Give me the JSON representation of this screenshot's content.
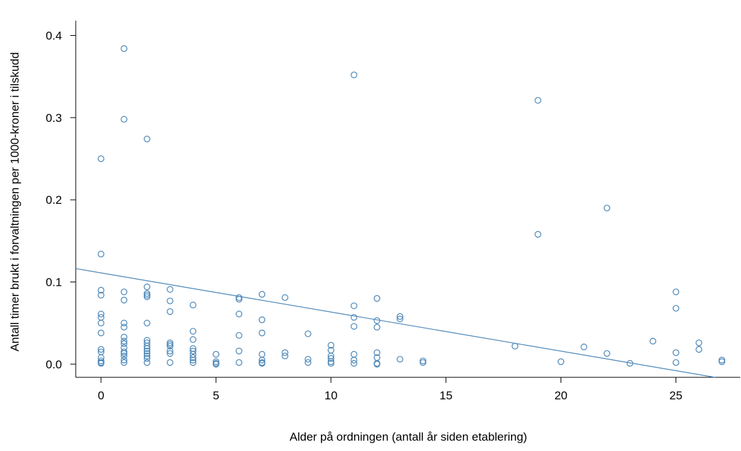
{
  "chart_data": {
    "type": "scatter",
    "title": "",
    "xlabel": "Alder på ordningen (antall år siden etablering)",
    "ylabel": "Antall timer brukt i forvaltningen per 1000-kroner i tilskudd",
    "xlim": [
      -1.1,
      27.8
    ],
    "ylim": [
      -0.016,
      0.418
    ],
    "x_ticks": [
      0,
      5,
      10,
      15,
      20,
      25
    ],
    "x_tick_labels": [
      "0",
      "5",
      "10",
      "15",
      "20",
      "25"
    ],
    "y_ticks": [
      0.0,
      0.1,
      0.2,
      0.3,
      0.4
    ],
    "y_tick_labels": [
      "0.0",
      "0.1",
      "0.2",
      "0.3",
      "0.4"
    ],
    "grid": false,
    "legend": "none",
    "point_color": "#4a86b8",
    "trendline": {
      "color": "#4a86b8",
      "from": [
        -1.1,
        0.1163
      ],
      "to": [
        26.7,
        -0.016
      ]
    },
    "points": [
      [
        0,
        0.25
      ],
      [
        0,
        0.134
      ],
      [
        0,
        0.09
      ],
      [
        0,
        0.084
      ],
      [
        0,
        0.061
      ],
      [
        0,
        0.057
      ],
      [
        0,
        0.05
      ],
      [
        0,
        0.038
      ],
      [
        0,
        0.018
      ],
      [
        0,
        0.015
      ],
      [
        0,
        0.008
      ],
      [
        0,
        0.004
      ],
      [
        0,
        0.002
      ],
      [
        0,
        0.001
      ],
      [
        1,
        0.384
      ],
      [
        1,
        0.298
      ],
      [
        1,
        0.088
      ],
      [
        1,
        0.078
      ],
      [
        1,
        0.05
      ],
      [
        1,
        0.045
      ],
      [
        1,
        0.033
      ],
      [
        1,
        0.028
      ],
      [
        1,
        0.025
      ],
      [
        1,
        0.02
      ],
      [
        1,
        0.015
      ],
      [
        1,
        0.013
      ],
      [
        1,
        0.01
      ],
      [
        1,
        0.005
      ],
      [
        1,
        0.002
      ],
      [
        2,
        0.274
      ],
      [
        2,
        0.094
      ],
      [
        2,
        0.086
      ],
      [
        2,
        0.084
      ],
      [
        2,
        0.082
      ],
      [
        2,
        0.05
      ],
      [
        2,
        0.029
      ],
      [
        2,
        0.026
      ],
      [
        2,
        0.022
      ],
      [
        2,
        0.019
      ],
      [
        2,
        0.016
      ],
      [
        2,
        0.013
      ],
      [
        2,
        0.01
      ],
      [
        2,
        0.007
      ],
      [
        2,
        0.002
      ],
      [
        3,
        0.091
      ],
      [
        3,
        0.077
      ],
      [
        3,
        0.064
      ],
      [
        3,
        0.026
      ],
      [
        3,
        0.024
      ],
      [
        3,
        0.022
      ],
      [
        3,
        0.016
      ],
      [
        3,
        0.013
      ],
      [
        3,
        0.002
      ],
      [
        4,
        0.072
      ],
      [
        4,
        0.04
      ],
      [
        4,
        0.03
      ],
      [
        4,
        0.019
      ],
      [
        4,
        0.016
      ],
      [
        4,
        0.012
      ],
      [
        4,
        0.008
      ],
      [
        4,
        0.005
      ],
      [
        4,
        0.002
      ],
      [
        5,
        0.012
      ],
      [
        5,
        0.003
      ],
      [
        5,
        0.001
      ],
      [
        5,
        0.0
      ],
      [
        6,
        0.081
      ],
      [
        6,
        0.079
      ],
      [
        6,
        0.061
      ],
      [
        6,
        0.035
      ],
      [
        6,
        0.016
      ],
      [
        6,
        0.002
      ],
      [
        7,
        0.085
      ],
      [
        7,
        0.054
      ],
      [
        7,
        0.038
      ],
      [
        7,
        0.012
      ],
      [
        7,
        0.005
      ],
      [
        7,
        0.002
      ],
      [
        7,
        0.001
      ],
      [
        8,
        0.081
      ],
      [
        8,
        0.014
      ],
      [
        8,
        0.01
      ],
      [
        9,
        0.037
      ],
      [
        9,
        0.006
      ],
      [
        9,
        0.002
      ],
      [
        10,
        0.023
      ],
      [
        10,
        0.017
      ],
      [
        10,
        0.01
      ],
      [
        10,
        0.007
      ],
      [
        10,
        0.003
      ],
      [
        10,
        0.001
      ],
      [
        11,
        0.352
      ],
      [
        11,
        0.071
      ],
      [
        11,
        0.057
      ],
      [
        11,
        0.046
      ],
      [
        11,
        0.012
      ],
      [
        11,
        0.005
      ],
      [
        11,
        0.001
      ],
      [
        12,
        0.08
      ],
      [
        12,
        0.053
      ],
      [
        12,
        0.045
      ],
      [
        12,
        0.014
      ],
      [
        12,
        0.008
      ],
      [
        12,
        0.001
      ],
      [
        12,
        0.0
      ],
      [
        13,
        0.058
      ],
      [
        13,
        0.055
      ],
      [
        13,
        0.006
      ],
      [
        14,
        0.004
      ],
      [
        14,
        0.002
      ],
      [
        18,
        0.022
      ],
      [
        19,
        0.321
      ],
      [
        19,
        0.158
      ],
      [
        20,
        0.003
      ],
      [
        21,
        0.021
      ],
      [
        22,
        0.19
      ],
      [
        22,
        0.013
      ],
      [
        23,
        0.001
      ],
      [
        24,
        0.028
      ],
      [
        25,
        0.088
      ],
      [
        25,
        0.068
      ],
      [
        25,
        0.014
      ],
      [
        25,
        0.002
      ],
      [
        26,
        0.026
      ],
      [
        26,
        0.018
      ],
      [
        27,
        0.005
      ],
      [
        27,
        0.003
      ]
    ]
  }
}
